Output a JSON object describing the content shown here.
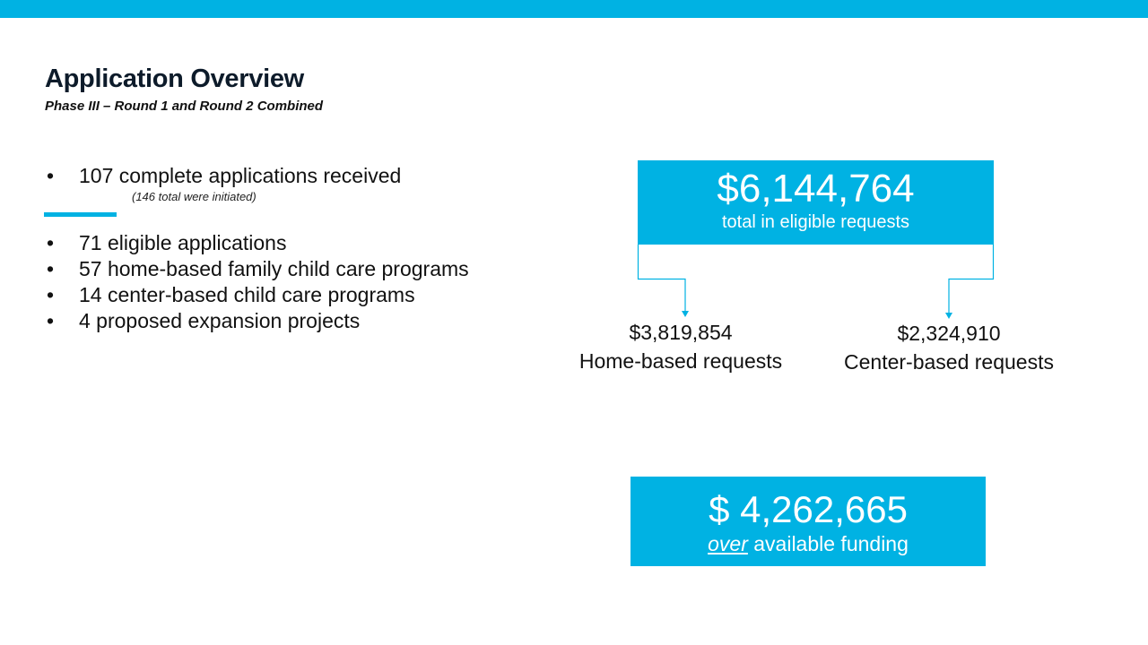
{
  "title": "Application Overview",
  "subtitle": "Phase III – Round 1 and Round 2 Combined",
  "bullets_top": [
    {
      "text": "107 complete applications received"
    }
  ],
  "note": "(146 total were initiated)",
  "bullets_bottom": [
    {
      "text": "71 eligible applications"
    },
    {
      "text": "57 home-based family child care programs"
    },
    {
      "text": "14 center-based child care programs"
    },
    {
      "text": "4 proposed expansion projects"
    }
  ],
  "bullet_char": "•",
  "total": {
    "amount": "$6,144,764",
    "label": "total in eligible requests"
  },
  "home": {
    "amount": "$3,819,854",
    "label": "Home-based requests"
  },
  "center": {
    "amount": "$2,324,910",
    "label": "Center-based requests"
  },
  "over": {
    "amount": "$ 4,262,665",
    "label_emph": "over",
    "label_rest": " available funding"
  },
  "colors": {
    "accent": "#00B2E3",
    "title": "#0d1b2a"
  }
}
